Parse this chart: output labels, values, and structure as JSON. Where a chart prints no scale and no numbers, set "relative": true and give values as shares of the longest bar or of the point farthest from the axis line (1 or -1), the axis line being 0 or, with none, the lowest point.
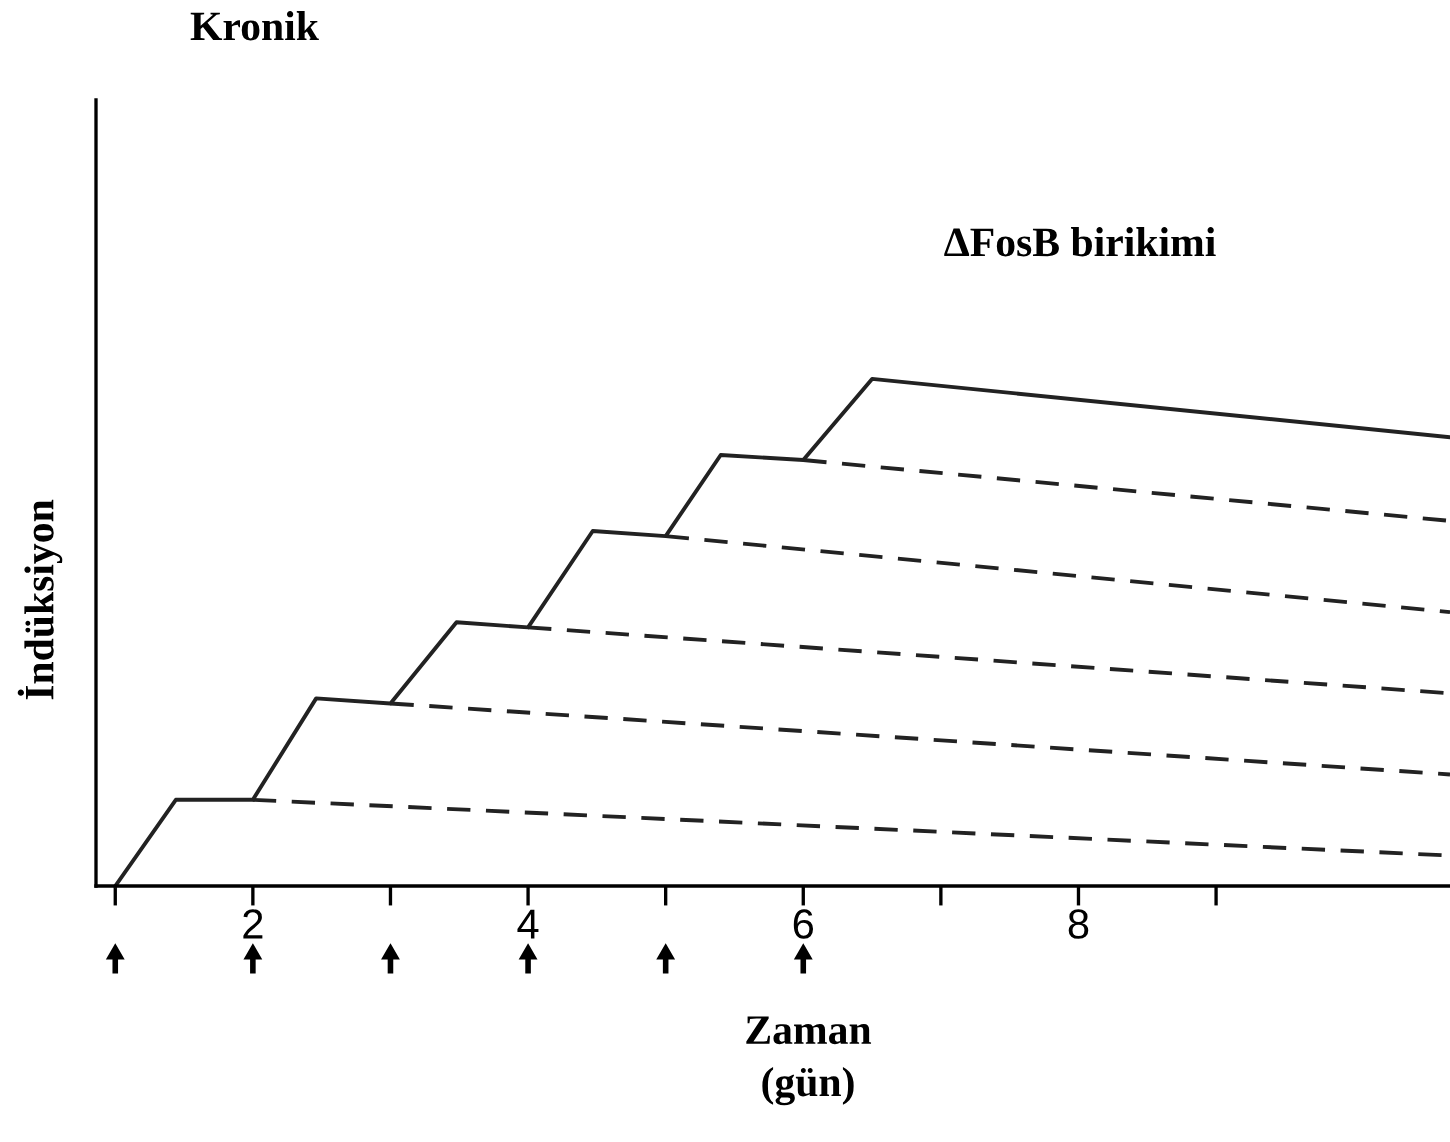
{
  "chart_data": {
    "type": "line",
    "title": "Kronik",
    "ylabel": "İndüksiyon",
    "xlabel": "Zaman\n(gün)",
    "relative": true,
    "annotations": [
      "ΔFosB birikimi"
    ],
    "xlim": [
      0.86,
      10.7
    ],
    "xticks": [
      {
        "value": 1,
        "label": null
      },
      2,
      {
        "value": 3,
        "label": null
      },
      4,
      {
        "value": 5,
        "label": null
      },
      6,
      {
        "value": 7,
        "label": null
      },
      8,
      {
        "value": 9,
        "label": null
      }
    ],
    "grid": false,
    "marker": "none",
    "tick_labels": "x",
    "series": [
      {
        "color": "#222222",
        "line_style": "solid",
        "x": [
          1,
          1.44,
          2,
          2.46,
          3,
          3.48,
          4,
          4.47,
          5,
          5.4,
          6,
          6.5,
          10.7
        ],
        "values": [
          0,
          0.17,
          0.17,
          0.37,
          0.36,
          0.52,
          0.51,
          0.7,
          0.69,
          0.85,
          0.84,
          1,
          0.885
        ]
      },
      {
        "color": "#222222",
        "line_style": "dashed",
        "x": [
          2,
          10.7
        ],
        "values": [
          0.17,
          0.06
        ]
      },
      {
        "color": "#222222",
        "line_style": "dashed",
        "x": [
          3,
          10.7
        ],
        "values": [
          0.36,
          0.22
        ]
      },
      {
        "color": "#222222",
        "line_style": "dashed",
        "x": [
          4,
          10.7
        ],
        "values": [
          0.51,
          0.38
        ]
      },
      {
        "color": "#222222",
        "line_style": "dashed",
        "x": [
          5,
          10.7
        ],
        "values": [
          0.69,
          0.54
        ]
      },
      {
        "color": "#222222",
        "line_style": "dashed",
        "x": [
          6,
          10.7
        ],
        "values": [
          0.84,
          0.72
        ]
      }
    ]
  }
}
